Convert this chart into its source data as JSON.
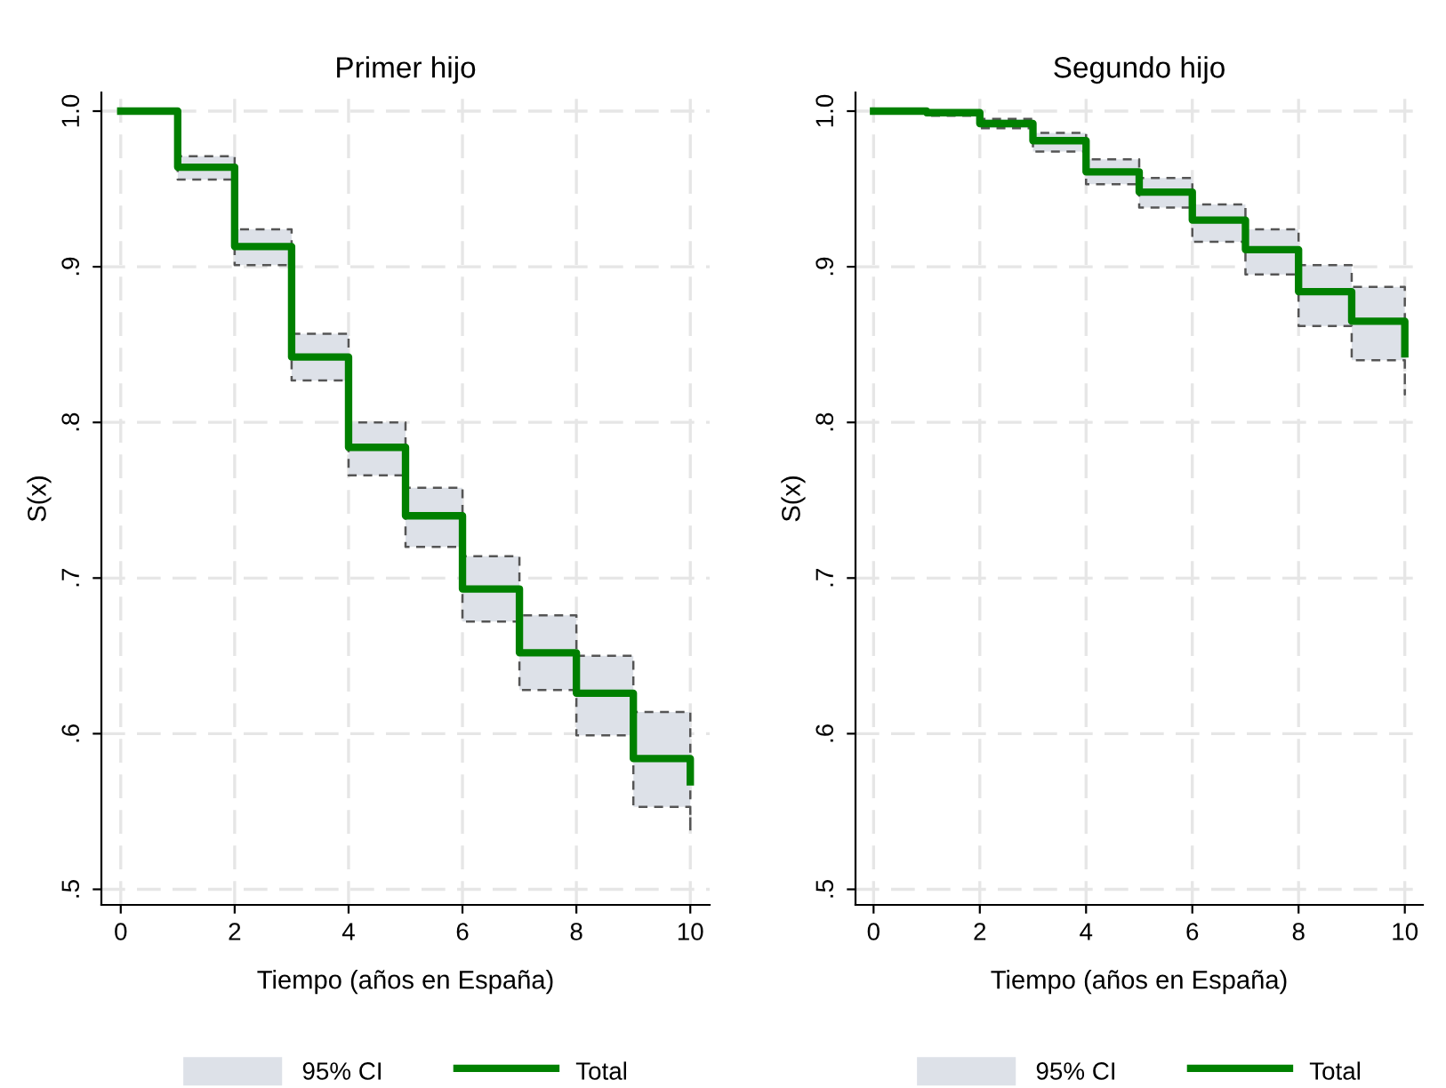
{
  "chart_data": [
    {
      "type": "step",
      "title": "Primer hijo",
      "xlabel": "Tiempo (años en España)",
      "ylabel": "S(x)",
      "x": [
        0,
        1,
        2,
        3,
        4,
        5,
        6,
        7,
        8,
        9,
        10
      ],
      "series": [
        {
          "name": "Total",
          "color": "#008000",
          "values": [
            1.0,
            0.964,
            0.913,
            0.842,
            0.784,
            0.74,
            0.693,
            0.652,
            0.626,
            0.584,
            0.569
          ],
          "lower": [
            1.0,
            0.956,
            0.901,
            0.827,
            0.766,
            0.72,
            0.672,
            0.628,
            0.599,
            0.553,
            0.537
          ],
          "upper": [
            1.0,
            0.971,
            0.924,
            0.857,
            0.8,
            0.758,
            0.714,
            0.676,
            0.65,
            0.614,
            0.614
          ]
        }
      ],
      "annotations": [
        "95% CI"
      ],
      "xlim": [
        -0.34,
        10.34
      ],
      "ylim": [
        0.49,
        1.012
      ],
      "xticks": [
        0,
        2,
        4,
        6,
        8,
        10
      ],
      "yticks": [
        {
          "value": 0.5,
          "label": ".5"
        },
        {
          "value": 0.6,
          "label": ".6"
        },
        {
          "value": 0.7,
          "label": ".7"
        },
        {
          "value": 0.8,
          "label": ".8"
        },
        {
          "value": 0.9,
          "label": ".9"
        },
        {
          "value": 1.0,
          "label": "1.0"
        }
      ],
      "grid": true,
      "legend": "bottom"
    },
    {
      "type": "step",
      "title": "Segundo hijo",
      "xlabel": "Tiempo (años en España)",
      "ylabel": "S(x)",
      "x": [
        0,
        1,
        2,
        3,
        4,
        5,
        6,
        7,
        8,
        9,
        10
      ],
      "series": [
        {
          "name": "Total",
          "color": "#008000",
          "values": [
            1.0,
            0.999,
            0.992,
            0.981,
            0.961,
            0.948,
            0.93,
            0.911,
            0.884,
            0.865,
            0.844
          ],
          "lower": [
            1.0,
            0.997,
            0.989,
            0.974,
            0.953,
            0.938,
            0.916,
            0.895,
            0.862,
            0.84,
            0.818
          ],
          "upper": [
            1.0,
            1.0,
            0.995,
            0.986,
            0.969,
            0.957,
            0.94,
            0.924,
            0.901,
            0.887,
            0.887
          ]
        }
      ],
      "annotations": [
        "95% CI"
      ],
      "xlim": [
        -0.34,
        10.34
      ],
      "ylim": [
        0.49,
        1.012
      ],
      "xticks": [
        0,
        2,
        4,
        6,
        8,
        10
      ],
      "yticks": [
        {
          "value": 0.5,
          "label": ".5"
        },
        {
          "value": 0.6,
          "label": ".6"
        },
        {
          "value": 0.7,
          "label": ".7"
        },
        {
          "value": 0.8,
          "label": ".8"
        },
        {
          "value": 0.9,
          "label": ".9"
        },
        {
          "value": 1.0,
          "label": "1.0"
        }
      ],
      "grid": true,
      "legend": "bottom"
    }
  ]
}
